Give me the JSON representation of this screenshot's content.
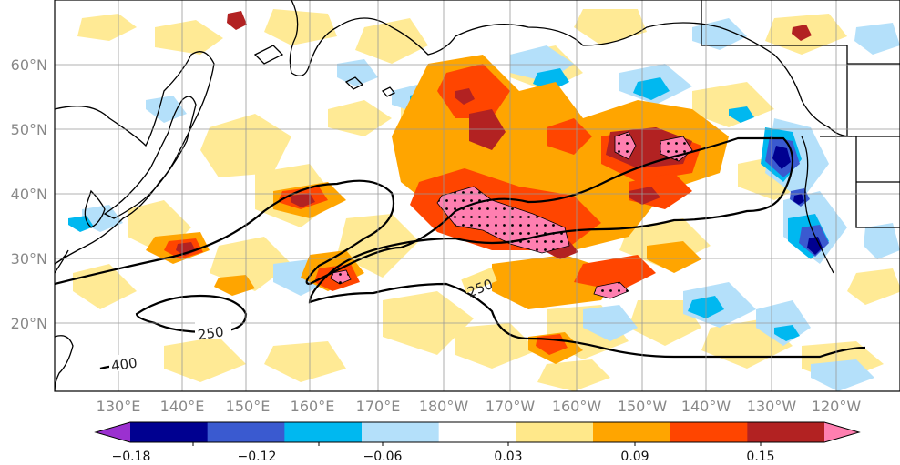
{
  "map": {
    "lat_labels": [
      "60°N",
      "50°N",
      "40°N",
      "30°N",
      "20°N"
    ],
    "lon_labels": [
      "130°E",
      "140°E",
      "150°E",
      "160°E",
      "170°E",
      "180°W",
      "170°W",
      "160°W",
      "150°W",
      "140°W",
      "130°W",
      "120°W"
    ],
    "contour_labels": [
      "250",
      "250",
      "400"
    ]
  },
  "colorbar": {
    "tick_labels": [
      "−0.18",
      "−0.12",
      "−0.06",
      "0.03",
      "0.09",
      "0.15"
    ],
    "colors": [
      "#9b30d0",
      "#000090",
      "#3a5ad0",
      "#00b8f0",
      "#b4e0fa",
      "#ffffff",
      "#ffe88a",
      "#ffa500",
      "#ff4500",
      "#b22222",
      "#ff7fb0"
    ]
  }
}
